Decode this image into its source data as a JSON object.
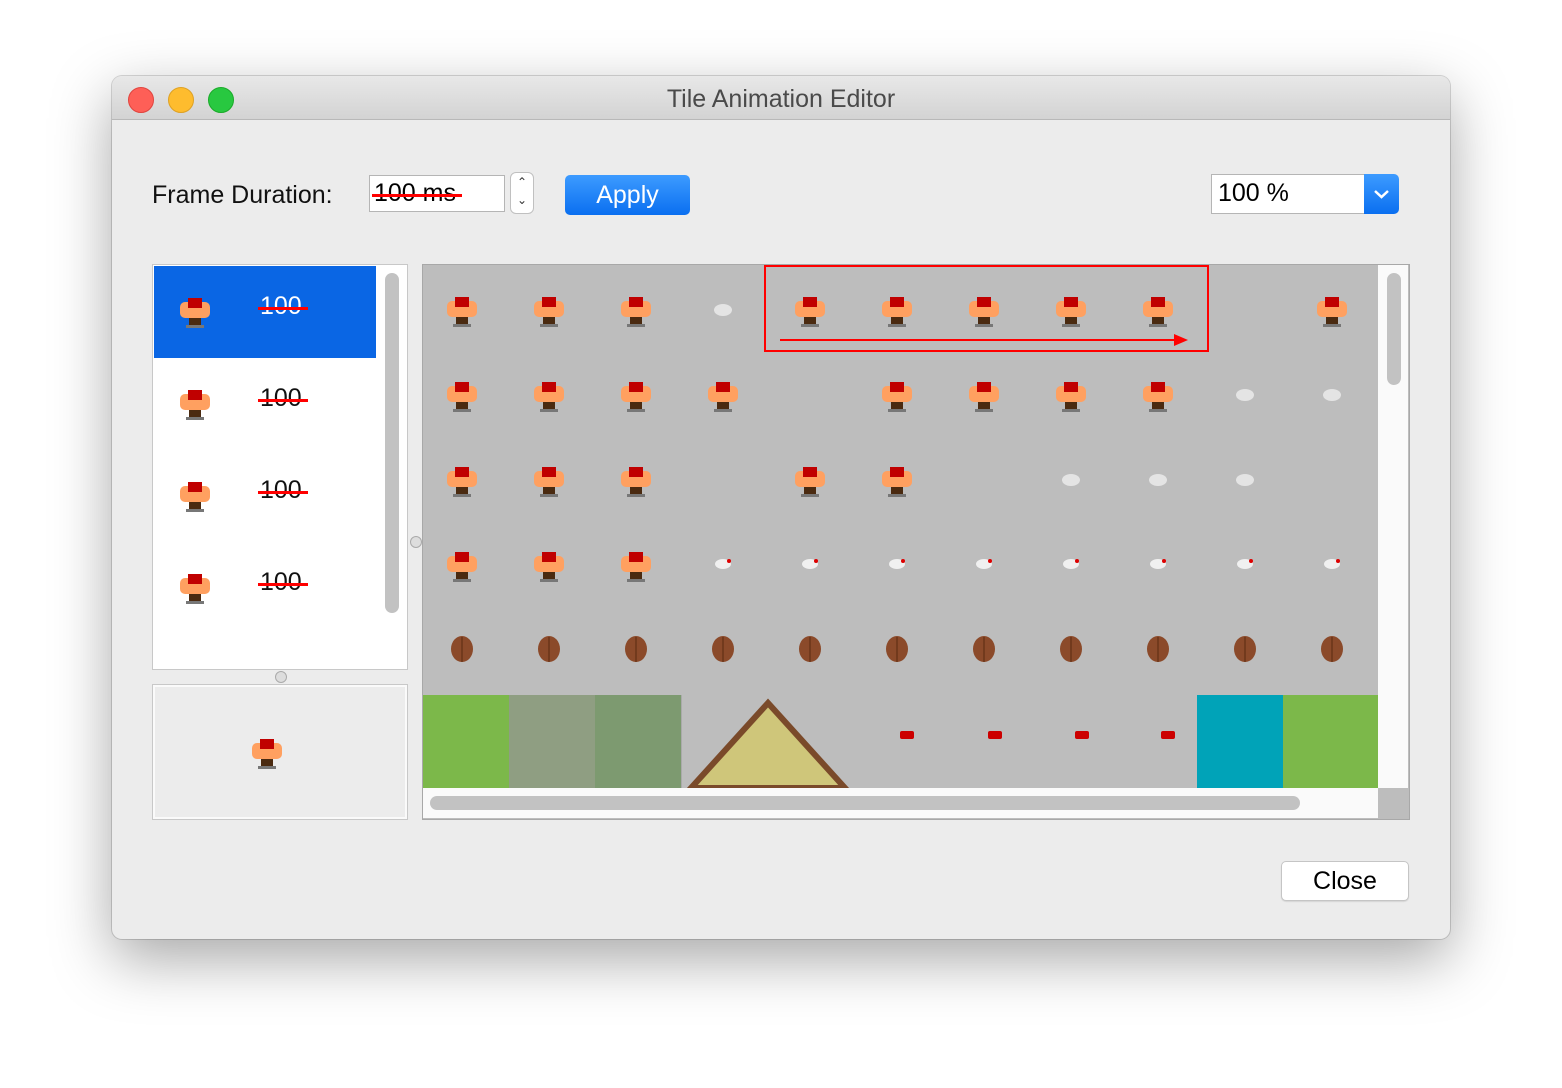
{
  "window": {
    "title": "Tile Animation Editor"
  },
  "toolbar": {
    "frame_duration_label": "Frame Duration:",
    "frame_duration_value": "100 ms",
    "apply_label": "Apply",
    "zoom_value": "100 %"
  },
  "frames": [
    {
      "duration": "100",
      "selected": true
    },
    {
      "duration": "100",
      "selected": false
    },
    {
      "duration": "100",
      "selected": false
    },
    {
      "duration": "100",
      "selected": false
    }
  ],
  "footer": {
    "close_label": "Close"
  },
  "colors": {
    "accent": "#0a66e4",
    "annotation": "#ff0000",
    "tileset_bg": "#bdbdbd"
  }
}
